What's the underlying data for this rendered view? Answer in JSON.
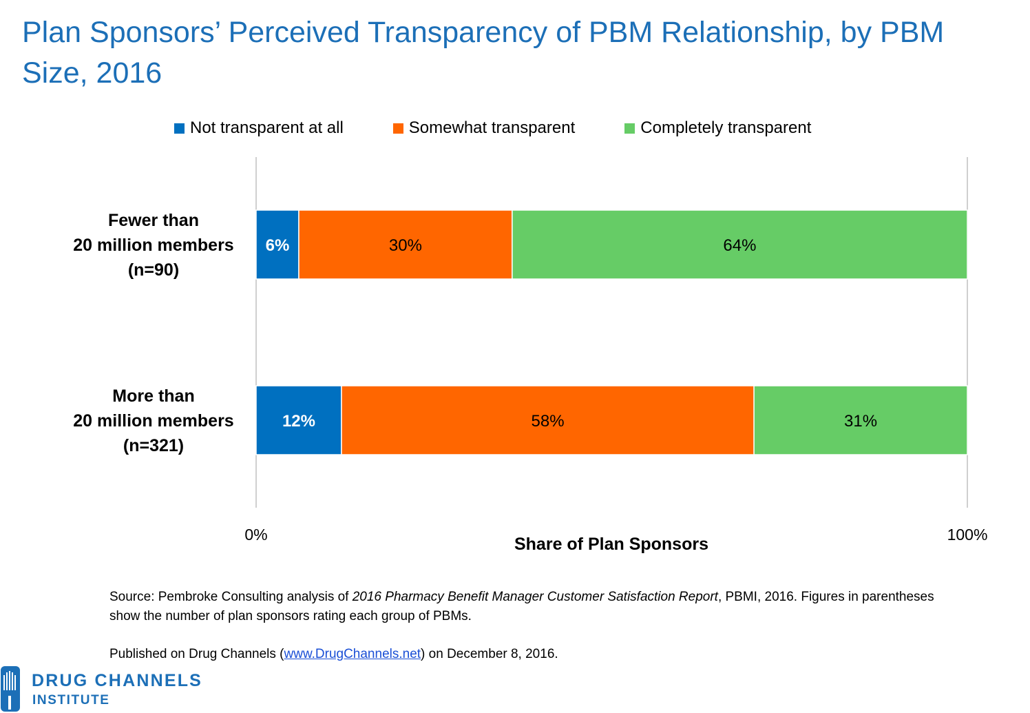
{
  "title": "Plan Sponsors’ Perceived Transparency of PBM Relationship, by PBM Size, 2016",
  "chart_data": {
    "type": "bar",
    "orientation": "horizontal",
    "stacked": true,
    "title": "Plan Sponsors’ Perceived Transparency of PBM Relationship, by PBM Size, 2016",
    "xlabel": "Share of Plan Sponsors",
    "ylabel": "",
    "xlim": [
      0,
      100
    ],
    "x_ticks": [
      "0%",
      "100%"
    ],
    "grid": false,
    "legend_position": "top",
    "categories": [
      [
        "Fewer than",
        "20 million members",
        "(n=90)"
      ],
      [
        "More than",
        "20 million members",
        "(n=321)"
      ]
    ],
    "series": [
      {
        "name": "Not transparent at all",
        "color": "#0070c0",
        "label_color": "#ffffff",
        "label_bold": true,
        "values": [
          6,
          12
        ],
        "labels": [
          "6%",
          "12%"
        ]
      },
      {
        "name": "Somewhat transparent",
        "color": "#ff6600",
        "label_color": "#000000",
        "label_bold": false,
        "values": [
          30,
          58
        ],
        "labels": [
          "30%",
          "58%"
        ]
      },
      {
        "name": "Completely transparent",
        "color": "#66cc66",
        "label_color": "#000000",
        "label_bold": false,
        "values": [
          64,
          31
        ],
        "labels": [
          "64%",
          "31%"
        ]
      }
    ]
  },
  "source": {
    "prefix": "Source: Pembroke Consulting analysis of ",
    "italic": "2016 Pharmacy Benefit Manager Customer Satisfaction Report",
    "suffix": ", PBMI, 2016. Figures in parentheses show the number of plan sponsors rating each group of PBMs."
  },
  "published": {
    "prefix": "Published on Drug Channels (",
    "link": "www.DrugChannels.net",
    "suffix": ") on December 8, 2016."
  },
  "logo": {
    "line1": "DRUG CHANNELS",
    "line2": "INSTITUTE",
    "color": "#1c6fb7"
  }
}
